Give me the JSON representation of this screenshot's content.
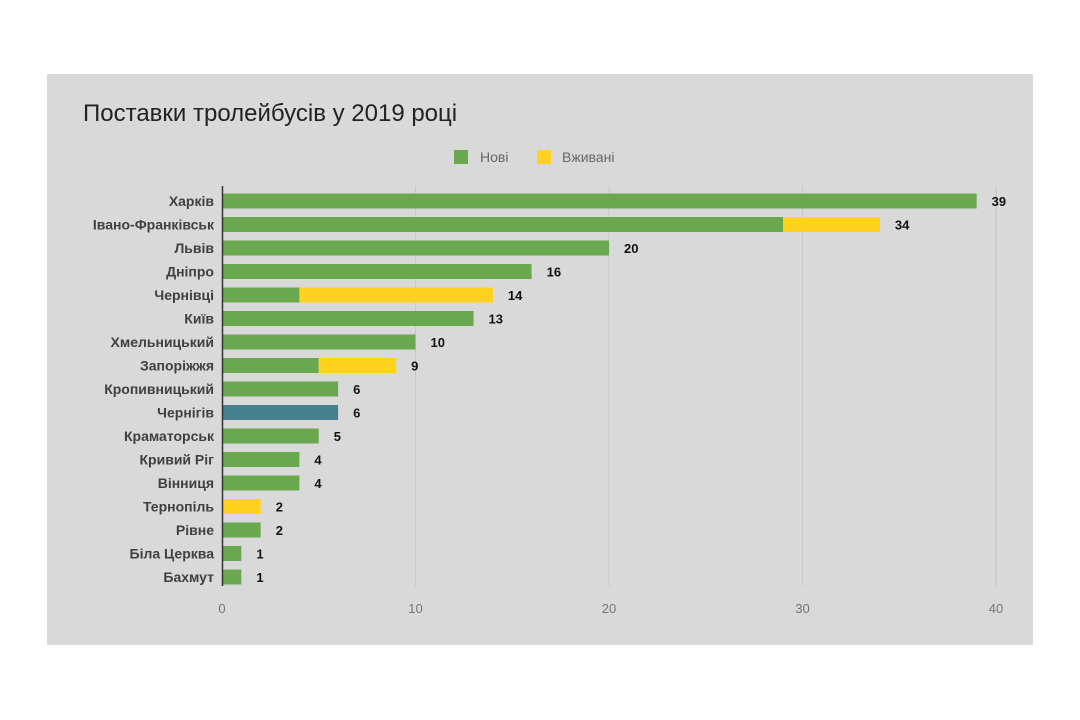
{
  "chart_data": {
    "type": "bar",
    "orientation": "horizontal",
    "stacked": true,
    "title": "Поставки тролейбусів у 2019 році",
    "categories": [
      "Харків",
      "Івано-Франківськ",
      "Львів",
      "Дніпро",
      "Чернівці",
      "Київ",
      "Хмельницький",
      "Запоріжжя",
      "Кропивницький",
      "Чернігів",
      "Краматорськ",
      "Кривий Ріг",
      "Вінниця",
      "Тернопіль",
      "Рівне",
      "Біла Церква",
      "Бахмут"
    ],
    "series": [
      {
        "name": "Нові",
        "color": "#6aa84f",
        "values": [
          39,
          29,
          20,
          16,
          4,
          13,
          10,
          5,
          6,
          6,
          5,
          4,
          4,
          0,
          2,
          1,
          1
        ]
      },
      {
        "name": "Вживані",
        "color": "#ffd21f",
        "values": [
          0,
          5,
          0,
          0,
          10,
          0,
          0,
          4,
          0,
          0,
          0,
          0,
          0,
          2,
          0,
          0,
          0
        ]
      }
    ],
    "totals": [
      39,
      34,
      20,
      16,
      14,
      13,
      10,
      9,
      6,
      6,
      5,
      4,
      4,
      2,
      2,
      1,
      1
    ],
    "highlight": {
      "category": "Чернігів",
      "color": "#45818e"
    },
    "xlim": [
      0,
      40
    ],
    "xticks": [
      0,
      10,
      20,
      30,
      40
    ],
    "xtick_labels": [
      "0",
      "10",
      "20",
      "30",
      "40"
    ],
    "grid": true,
    "legend_position": "top"
  },
  "legend": {
    "new_label": "Нові",
    "used_label": "Вживані"
  },
  "colors": {
    "background": "#d9d9d9",
    "grid": "#c8c8c8",
    "axis": "#333333"
  }
}
